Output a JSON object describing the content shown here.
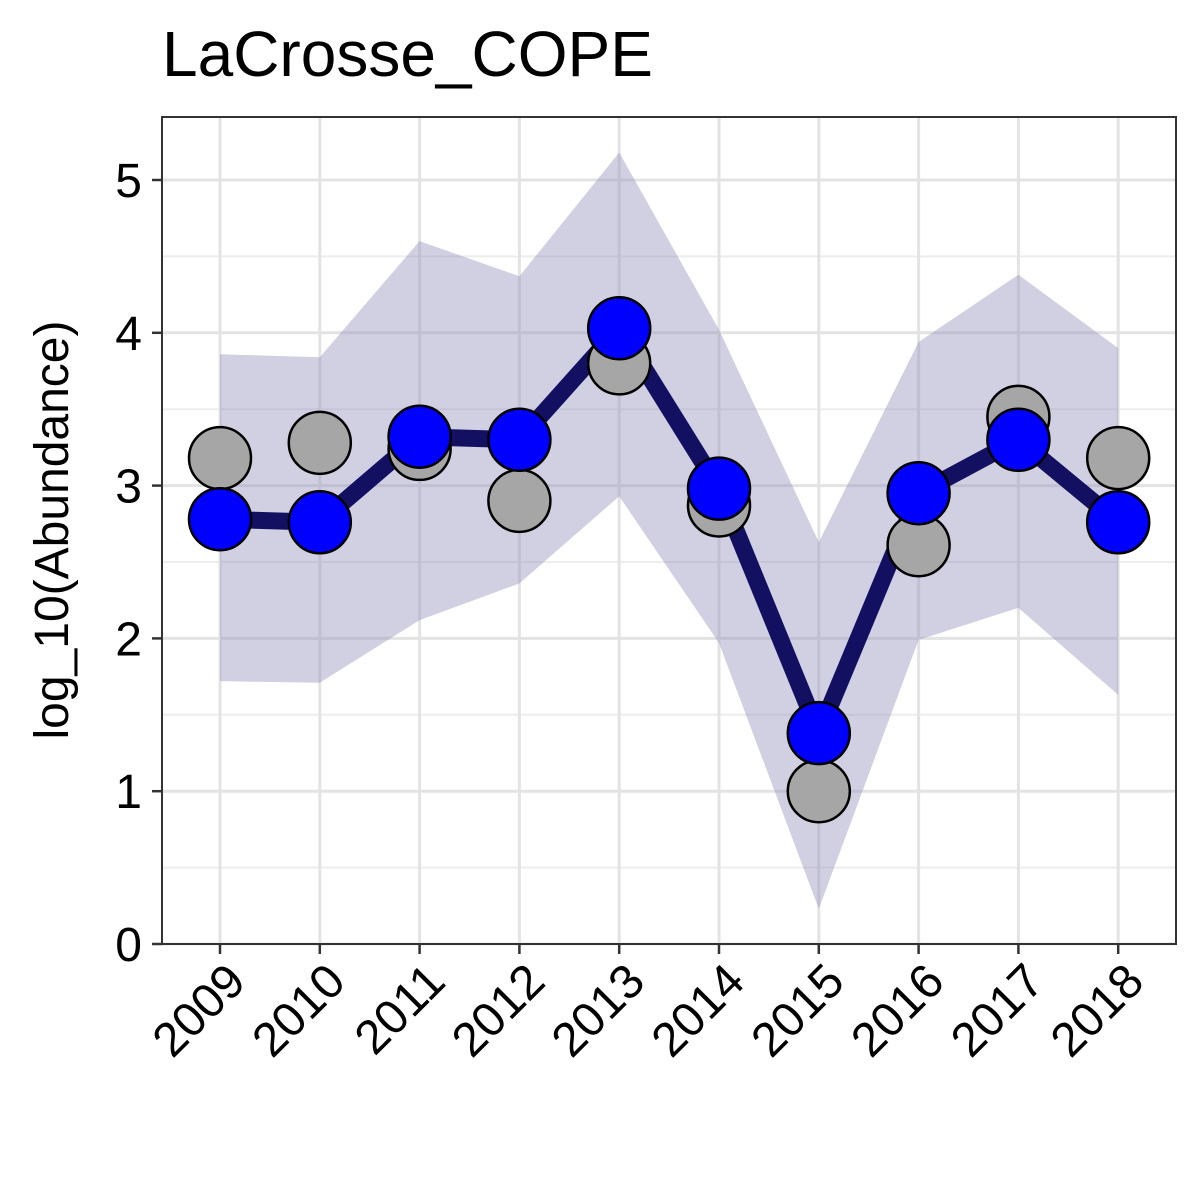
{
  "chart_data": {
    "type": "line",
    "title": "LaCrosse_COPE",
    "xlabel": "",
    "ylabel": "log_10(Abundance)",
    "categories": [
      "2009",
      "2010",
      "2011",
      "2012",
      "2013",
      "2014",
      "2015",
      "2016",
      "2017",
      "2018"
    ],
    "ylim": [
      0,
      5.4
    ],
    "yticks": [
      "0",
      "1",
      "2",
      "3",
      "4",
      "5"
    ],
    "grid": true,
    "legend": "none",
    "series": [
      {
        "role": "confidence-band",
        "lower": [
          1.72,
          1.71,
          2.12,
          2.36,
          2.93,
          1.97,
          0.23,
          1.99,
          2.2,
          1.63
        ],
        "upper": [
          3.86,
          3.84,
          4.6,
          4.37,
          5.18,
          4.02,
          2.63,
          3.94,
          4.38,
          3.9
        ],
        "color": "#8f90bb"
      },
      {
        "role": "observed",
        "values": [
          3.18,
          3.28,
          3.24,
          2.9,
          3.8,
          2.87,
          1.0,
          2.61,
          3.45,
          3.18
        ],
        "color": "#a6a6a6"
      },
      {
        "role": "estimate",
        "values": [
          2.78,
          2.76,
          3.32,
          3.3,
          4.03,
          2.98,
          1.38,
          2.95,
          3.3,
          2.76
        ],
        "color": "#0000ff",
        "line_color": "#131062"
      }
    ]
  }
}
